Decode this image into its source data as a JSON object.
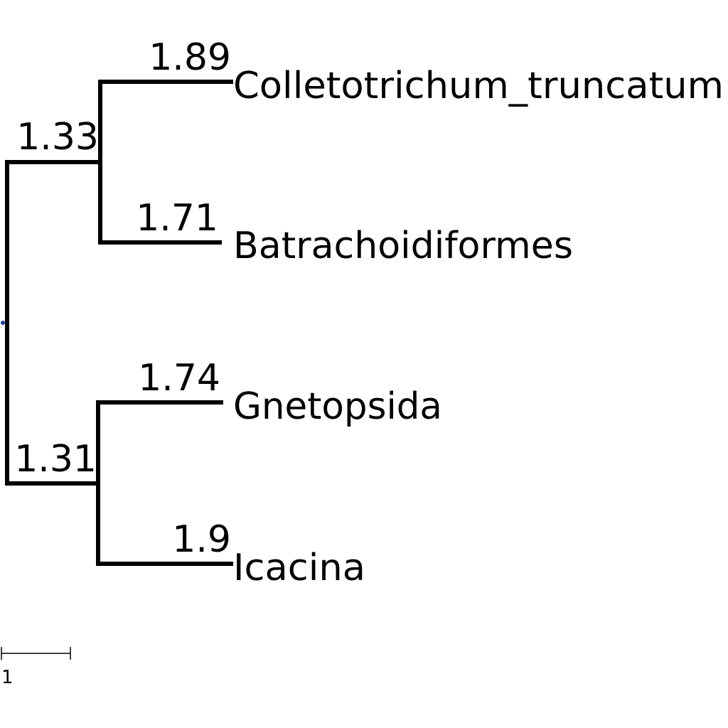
{
  "tree": {
    "root_marker_color": "#2040a0",
    "branch_color": "#000000",
    "internal_nodes": [
      {
        "id": "clade-upper",
        "support": "1.33"
      },
      {
        "id": "clade-lower",
        "support": "1.31"
      }
    ],
    "leaves": [
      {
        "id": "leaf-colletotrichum",
        "name": "Colletotrichum_truncatum",
        "branch_length": "1.89"
      },
      {
        "id": "leaf-batrachoidiformes",
        "name": "Batrachoidiformes",
        "branch_length": "1.71"
      },
      {
        "id": "leaf-gnetopsida",
        "name": "Gnetopsida",
        "branch_length": "1.74"
      },
      {
        "id": "leaf-icacina",
        "name": "Icacina",
        "branch_length": "1.9"
      }
    ]
  },
  "scale_bar": {
    "label": "1"
  }
}
